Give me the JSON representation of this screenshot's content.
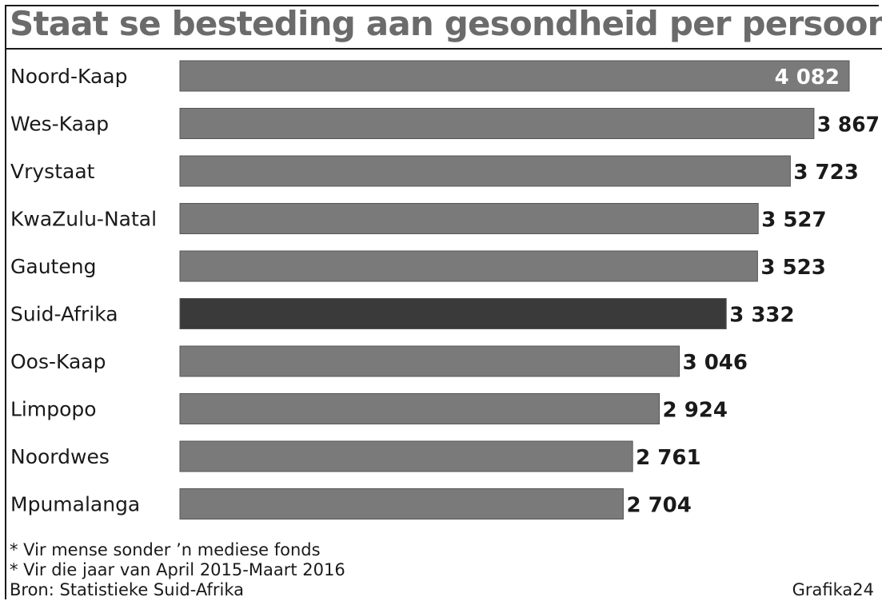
{
  "chart_data": {
    "type": "bar",
    "orientation": "horizontal",
    "title": "Staat se besteding aan gesondheid per persoon*",
    "categories": [
      "Noord-Kaap",
      "Wes-Kaap",
      "Vrystaat",
      "KwaZulu-Natal",
      "Gauteng",
      "Suid-Afrika",
      "Oos-Kaap",
      "Limpopo",
      "Noordwes",
      "Mpumalanga"
    ],
    "values": [
      4082,
      3867,
      3723,
      3527,
      3523,
      3332,
      3046,
      2924,
      2761,
      2704
    ],
    "value_labels": [
      "4 082",
      "3 867",
      "3 723",
      "3 527",
      "3 523",
      "3 332",
      "3 046",
      "2 924",
      "2 761",
      "2 704"
    ],
    "highlight": "Suid-Afrika",
    "bar_color": "#7a7a7a",
    "highlight_color": "#3a3a3a",
    "xlim": [
      0,
      4082
    ],
    "grid": false,
    "legend": "none"
  },
  "notes": [
    "* Vir mense sonder ’n mediese fonds",
    "* Vir die jaar van April 2015-Maart 2016"
  ],
  "source": "Bron: Statistieke Suid-Afrika",
  "credit": "Grafika24"
}
